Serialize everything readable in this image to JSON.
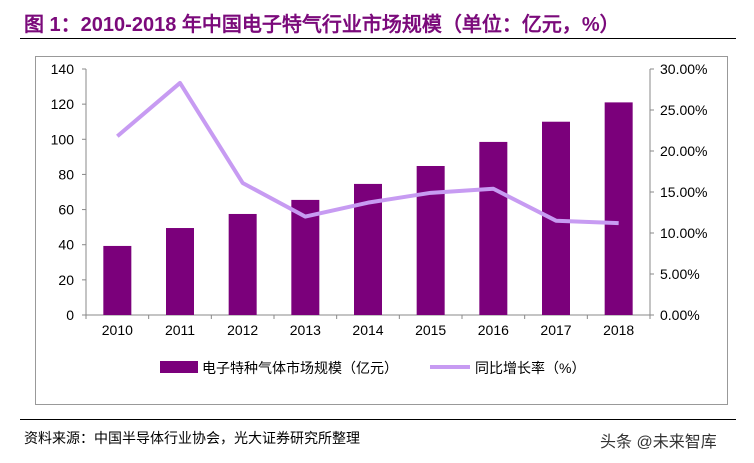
{
  "title": "图 1：2010-2018 年中国电子特气行业市场规模（单位：亿元，%）",
  "source": "资料来源：中国半导体行业协会，光大证券研究所整理",
  "watermark": "头条 @未来智库",
  "chart_data": {
    "type": "bar+line",
    "categories": [
      "2010",
      "2011",
      "2012",
      "2013",
      "2014",
      "2015",
      "2016",
      "2017",
      "2018"
    ],
    "series": [
      {
        "name": "电子特种气体市场规模（亿元）",
        "type": "bar",
        "axis": "left",
        "color": "#7b007b",
        "values": [
          39.3,
          49.5,
          57.5,
          65.5,
          74.6,
          84.8,
          98.5,
          110,
          121
        ]
      },
      {
        "name": "同比增长率（%）",
        "type": "line",
        "axis": "right",
        "color": "#c79bf2",
        "values": [
          21.8,
          28.3,
          16.1,
          12.0,
          13.7,
          14.9,
          15.4,
          11.5,
          11.2
        ]
      }
    ],
    "left_axis": {
      "range": [
        0,
        140
      ],
      "ticks": [
        "0",
        "20",
        "40",
        "60",
        "80",
        "100",
        "120",
        "140"
      ]
    },
    "right_axis": {
      "range": [
        0,
        30
      ],
      "ticks": [
        "0.00%",
        "5.00%",
        "10.00%",
        "15.00%",
        "20.00%",
        "25.00%",
        "30.00%"
      ]
    },
    "legend_position": "bottom",
    "grid": false
  }
}
